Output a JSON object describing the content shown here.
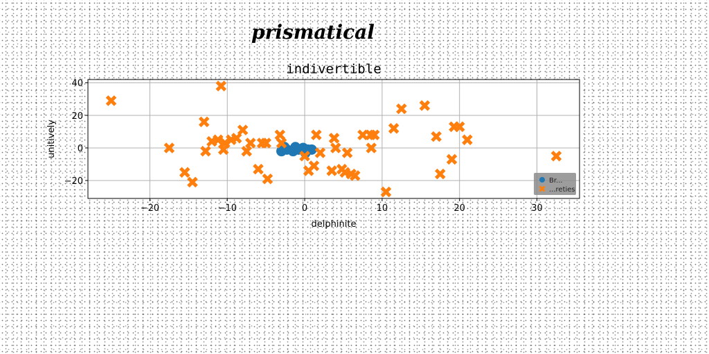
{
  "chart_data": {
    "type": "scatter",
    "suptitle": "prismatical",
    "title": "indivertible",
    "xlabel": "delphinite",
    "ylabel": "unitively",
    "xlim": [
      -28,
      35.5
    ],
    "ylim": [
      -31,
      42
    ],
    "xticks": [
      -20,
      -10,
      0,
      10,
      20,
      30
    ],
    "yticks": [
      -20,
      0,
      20,
      40
    ],
    "grid": true,
    "legend_position": "lower-right",
    "series": [
      {
        "name": "Br...",
        "marker": "circle",
        "color": "#1f77b4",
        "x": [
          -3,
          -2.3,
          -1.5,
          -0.8,
          -0.2,
          0.4,
          -2.6,
          -1.2,
          0.9,
          0.1
        ],
        "y": [
          -2,
          -1,
          -2,
          -1,
          0,
          -1,
          0.5,
          0.5,
          -1,
          -3
        ]
      },
      {
        "name": "...reties",
        "marker": "x",
        "color": "#ff7f0e",
        "x": [
          -25,
          -17.5,
          -15.5,
          -14.5,
          -13,
          -12.8,
          -12,
          -11.2,
          -10.8,
          -10.5,
          -10.3,
          -9.5,
          -8.8,
          -8,
          -7.5,
          -7,
          -6,
          -5.5,
          -5,
          -4.8,
          -3.2,
          -3,
          0,
          0.5,
          1.2,
          1.5,
          2,
          3.5,
          3.8,
          4,
          4.8,
          5.2,
          5.5,
          6,
          6.5,
          7.5,
          8.5,
          8.6,
          9,
          10.5,
          11.5,
          12.5,
          15.5,
          17,
          17.5,
          19,
          19.3,
          20,
          21,
          32.5
        ],
        "y": [
          29,
          0,
          -15,
          -21,
          16,
          -2,
          4,
          5,
          38,
          -1,
          3,
          5,
          6,
          11,
          -2,
          3,
          -13,
          3,
          3,
          -19,
          8,
          3,
          -5,
          -14,
          -11,
          8,
          -3,
          -14,
          6,
          0,
          -13,
          -15,
          -3,
          -16,
          -17,
          8,
          8,
          0,
          8,
          -27,
          12,
          24,
          26,
          7,
          -16,
          -7,
          13,
          13,
          5,
          -5
        ]
      }
    ]
  }
}
